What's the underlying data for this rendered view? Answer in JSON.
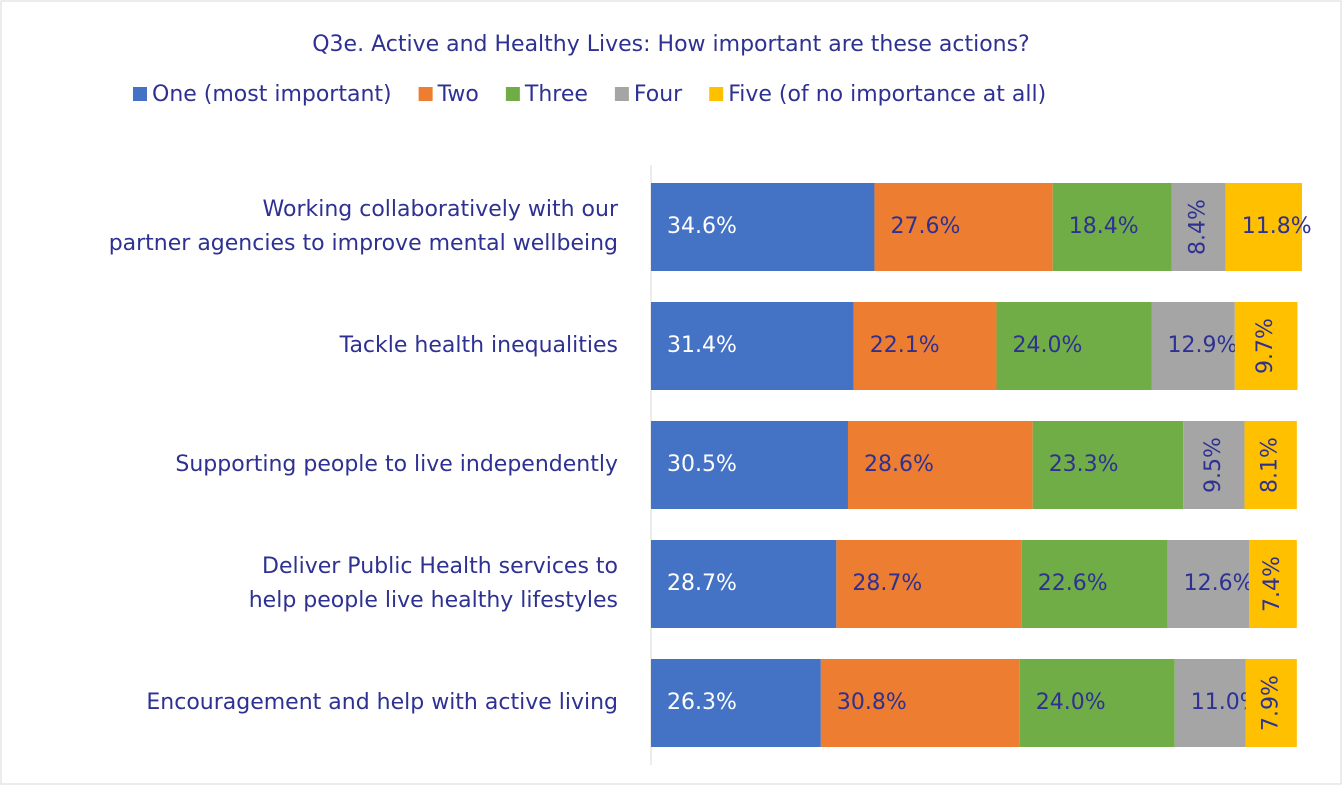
{
  "chart_data": {
    "type": "stacked-bar-horizontal",
    "title": "Q3e. Active and Healthy Lives: How important are these actions?",
    "categories": [
      [
        "Working collaboratively with our",
        "partner agencies to improve mental wellbeing"
      ],
      [
        "Tackle health inequalities"
      ],
      [
        "Supporting people to live independently"
      ],
      [
        "Deliver Public Health services to",
        "help people live healthy lifestyles"
      ],
      [
        "Encouragement and help with active living"
      ]
    ],
    "series": [
      {
        "name": "One (most important)",
        "color": "#4472c4",
        "values": [
          34.6,
          31.4,
          30.5,
          28.7,
          26.3
        ],
        "value_labels": [
          "34.6%",
          "31.4%",
          "30.5%",
          "28.7%",
          "26.3%"
        ]
      },
      {
        "name": "Two",
        "color": "#ed7d31",
        "values": [
          27.6,
          22.1,
          28.6,
          28.7,
          30.8
        ],
        "value_labels": [
          "27.6%",
          "22.1%",
          "28.6%",
          "28.7%",
          "30.8%"
        ]
      },
      {
        "name": "Three",
        "color": "#70ad47",
        "values": [
          18.4,
          24.0,
          23.3,
          22.6,
          24.0
        ],
        "value_labels": [
          "18.4%",
          "24.0%",
          "23.3%",
          "22.6%",
          "24.0%"
        ]
      },
      {
        "name": "Four",
        "color": "#a5a5a5",
        "values": [
          8.4,
          12.9,
          9.5,
          12.6,
          11.0
        ],
        "value_labels": [
          "8.4%",
          "12.9%",
          "9.5%",
          "12.6%",
          "11.0%"
        ]
      },
      {
        "name": "Five (of no importance at all)",
        "color": "#ffc000",
        "values": [
          11.8,
          9.7,
          8.1,
          7.4,
          7.9
        ],
        "value_labels": [
          "11.8%",
          "9.7%",
          "8.1%",
          "7.4%",
          "7.9%"
        ]
      }
    ],
    "legend": "top"
  }
}
